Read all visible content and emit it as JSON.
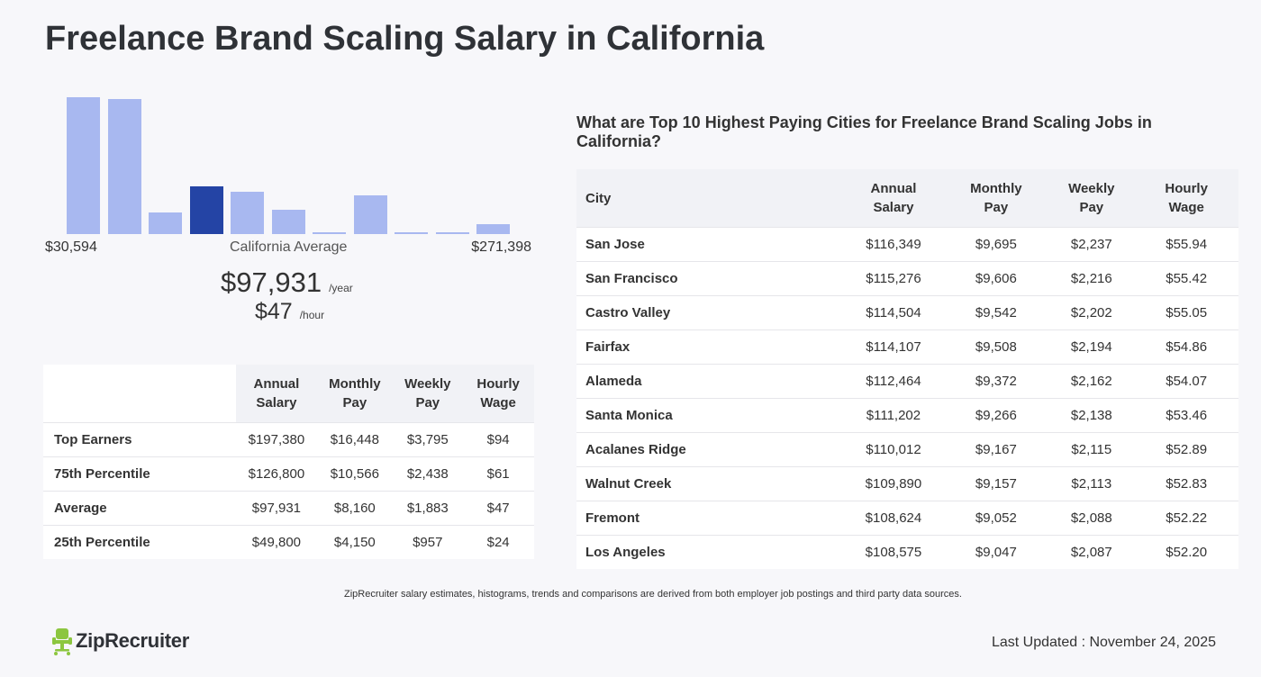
{
  "page": {
    "title": "Freelance Brand Scaling Salary in California"
  },
  "histogram": {
    "min_label": "$30,594",
    "max_label": "$271,398",
    "avg_label": "California Average",
    "annual_value": "$97,931",
    "annual_unit": "/year",
    "hourly_value": "$47",
    "hourly_unit": "/hour",
    "colors": {
      "bar": "#a8b8f0",
      "active": "#2444a5"
    },
    "bars": [
      {
        "value": 1.0,
        "active": false
      },
      {
        "value": 0.99,
        "active": false
      },
      {
        "value": 0.16,
        "active": false
      },
      {
        "value": 0.35,
        "active": true
      },
      {
        "value": 0.31,
        "active": false
      },
      {
        "value": 0.18,
        "active": false
      },
      {
        "value": 0.01,
        "active": false
      },
      {
        "value": 0.28,
        "active": false
      },
      {
        "value": 0.01,
        "active": false
      },
      {
        "value": 0.01,
        "active": false
      },
      {
        "value": 0.07,
        "active": false
      }
    ]
  },
  "percentiles": {
    "headers": [
      [
        "Annual",
        "Salary"
      ],
      [
        "Monthly",
        "Pay"
      ],
      [
        "Weekly",
        "Pay"
      ],
      [
        "Hourly",
        "Wage"
      ]
    ],
    "rows": [
      {
        "label": "Top Earners",
        "annual": "$197,380",
        "monthly": "$16,448",
        "weekly": "$3,795",
        "hourly": "$94"
      },
      {
        "label": "75th Percentile",
        "annual": "$126,800",
        "monthly": "$10,566",
        "weekly": "$2,438",
        "hourly": "$61"
      },
      {
        "label": "Average",
        "annual": "$97,931",
        "monthly": "$8,160",
        "weekly": "$1,883",
        "hourly": "$47"
      },
      {
        "label": "25th Percentile",
        "annual": "$49,800",
        "monthly": "$4,150",
        "weekly": "$957",
        "hourly": "$24"
      }
    ]
  },
  "cities": {
    "title": "What are Top 10 Highest Paying Cities for Freelance Brand Scaling Jobs in California?",
    "city_header": "City",
    "headers": [
      [
        "Annual",
        "Salary"
      ],
      [
        "Monthly",
        "Pay"
      ],
      [
        "Weekly",
        "Pay"
      ],
      [
        "Hourly",
        "Wage"
      ]
    ],
    "rows": [
      {
        "city": "San Jose",
        "annual": "$116,349",
        "monthly": "$9,695",
        "weekly": "$2,237",
        "hourly": "$55.94"
      },
      {
        "city": "San Francisco",
        "annual": "$115,276",
        "monthly": "$9,606",
        "weekly": "$2,216",
        "hourly": "$55.42"
      },
      {
        "city": "Castro Valley",
        "annual": "$114,504",
        "monthly": "$9,542",
        "weekly": "$2,202",
        "hourly": "$55.05"
      },
      {
        "city": "Fairfax",
        "annual": "$114,107",
        "monthly": "$9,508",
        "weekly": "$2,194",
        "hourly": "$54.86"
      },
      {
        "city": "Alameda",
        "annual": "$112,464",
        "monthly": "$9,372",
        "weekly": "$2,162",
        "hourly": "$54.07"
      },
      {
        "city": "Santa Monica",
        "annual": "$111,202",
        "monthly": "$9,266",
        "weekly": "$2,138",
        "hourly": "$53.46"
      },
      {
        "city": "Acalanes Ridge",
        "annual": "$110,012",
        "monthly": "$9,167",
        "weekly": "$2,115",
        "hourly": "$52.89"
      },
      {
        "city": "Walnut Creek",
        "annual": "$109,890",
        "monthly": "$9,157",
        "weekly": "$2,113",
        "hourly": "$52.83"
      },
      {
        "city": "Fremont",
        "annual": "$108,624",
        "monthly": "$9,052",
        "weekly": "$2,088",
        "hourly": "$52.22"
      },
      {
        "city": "Los Angeles",
        "annual": "$108,575",
        "monthly": "$9,047",
        "weekly": "$2,087",
        "hourly": "$52.20"
      }
    ]
  },
  "footer": {
    "disclaimer": "ZipRecruiter salary estimates, histograms, trends and comparisons are derived from both employer job postings and third party data sources.",
    "logo_text": "ZipRecruiter",
    "logo_color": "#8cc63f",
    "last_updated": "Last Updated : November 24, 2025"
  }
}
